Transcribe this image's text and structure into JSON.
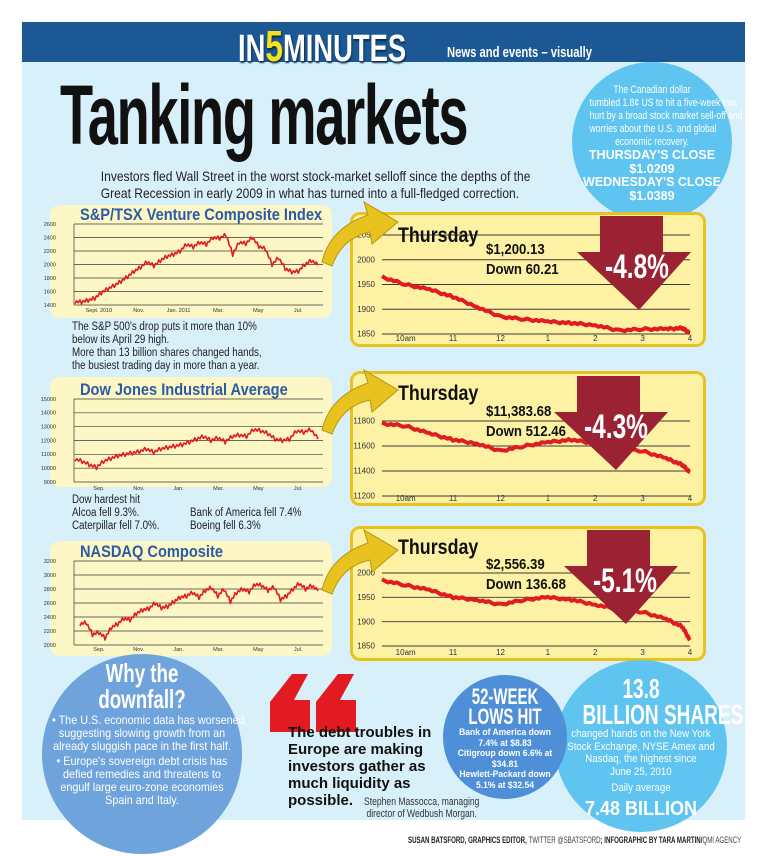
{
  "header": {
    "brand_in": "IN",
    "brand_5": "5",
    "brand_minutes": "MINUTES",
    "tagline": "News and events – visually"
  },
  "title": "Tanking markets",
  "subtitle": [
    "Investors fled Wall Street in the worst stock-market selloff since the depths of the",
    "Great Recession in early 2009 in what has turned into a full-fledged correction."
  ],
  "cad_bubble": {
    "text": [
      "The Canadian dollar",
      "tumbled 1.8¢ US to hit a five-week low,",
      "hurt by a broad stock market sell-off and",
      "worries about the U.S. and global",
      "economic recovery."
    ],
    "thu_label": "THURSDAY'S CLOSE",
    "thu_value": "$1.0209",
    "wed_label": "WEDNESDAY'S CLOSE",
    "wed_value": "$1.0389"
  },
  "notes": {
    "sp": [
      "The S&P 500's drop puts it more than 10%",
      "below its April 29 high.",
      "More than 13 billion shares changed hands,",
      "the busiest trading day in more than a year."
    ],
    "dow_head": "Dow hardest hit",
    "dow_left": [
      "Alcoa fell 9.3%.",
      "Caterpillar fell 7.0%."
    ],
    "dow_right": [
      "Bank of America fell 7.4%",
      "Boeing fell 6.3%"
    ]
  },
  "intraday_labels": [
    {
      "day": "Thursday",
      "close": "$1,200.13",
      "change": "Down 60.21",
      "pct": "-4.8%"
    },
    {
      "day": "Thursday",
      "close": "$11,383.68",
      "change": "Down 512.46",
      "pct": "-4.3%"
    },
    {
      "day": "Thursday",
      "close": "$2,556.39",
      "change": "Down 136.68",
      "pct": "-5.1%"
    }
  ],
  "why": {
    "title1": "Why the",
    "title2": "downfall?",
    "bullets": [
      [
        "• The U.S. economic data has worsened,",
        "suggesting slowing growth from an",
        "already sluggish pace in the first half."
      ],
      [
        "• Europe's sovereign debt crisis has",
        "defied remedies and threatens to",
        "engulf large euro-zone economies",
        "Spain and Italy."
      ]
    ]
  },
  "quote": {
    "mark": "“",
    "text": [
      "The debt troubles in",
      "Europe are making",
      "investors gather as",
      "much liquidity as",
      "possible."
    ],
    "attribution": [
      "Stephen Massocca, managing",
      "director of Wedbush Morgan."
    ]
  },
  "lows": {
    "title1": "52-WEEK",
    "title2": "LOWS HIT",
    "lines": [
      "Bank of America down",
      "7.4% at $8.83",
      "Citigroup down 6.6% at",
      "$34.81",
      "Hewlett-Packard down",
      "5.1% at $32.54"
    ]
  },
  "shares": {
    "num": "13.8",
    "label": "BILLION SHARES",
    "lines": [
      "changed hands on the New York",
      "Stock Exchange, NYSE Amex and",
      "Nasdaq, the highest since",
      "June 25, 2010"
    ],
    "avg_label": "Daily average",
    "avg_value": "7.48 BILLION"
  },
  "credit": {
    "a": "SUSAN BATSFORD, GRAPHICS EDITOR, ",
    "b": "TWITTER @SBATSFORD",
    "c": "; INFOGRAPHIC BY TARA MARTIN/",
    "d": "QMI AGENCY"
  },
  "colors": {
    "line": "#e01b22",
    "header": "#1b5894",
    "chart_title": "#2b5ba6",
    "down_arrow": "#9b2232",
    "panel": "#d8f0fa"
  },
  "chart_data": [
    {
      "type": "line",
      "title": "S&P/TSX Venture Composite Index",
      "ylim": [
        1400,
        2600
      ],
      "yticks": [
        2600,
        2400,
        2200,
        2000,
        1800,
        1600,
        1400
      ],
      "xticks": [
        "Sept. 2010",
        "Nov.",
        "Jan. 2011",
        "Mar.",
        "May",
        "Jul."
      ],
      "grid": true,
      "values": [
        1450,
        1445,
        1470,
        1500,
        1580,
        1640,
        1690,
        1750,
        1820,
        1900,
        1960,
        2040,
        1980,
        2060,
        2120,
        2150,
        2200,
        2300,
        2260,
        2330,
        2300,
        2400,
        2390,
        2440,
        2150,
        2330,
        2310,
        2400,
        2270,
        2230,
        2000,
        2100,
        1940,
        1890,
        1900,
        2000,
        2060,
        1990
      ]
    },
    {
      "type": "line",
      "title": "Dow Jones Industrial Average",
      "ylim": [
        9000,
        15000
      ],
      "yticks": [
        15000,
        14000,
        13000,
        12000,
        11000,
        10000,
        9000
      ],
      "xticks": [
        "Sep.",
        "Nov.",
        "Jan.",
        "Mar.",
        "May",
        "Jul."
      ],
      "grid": true,
      "values": [
        10650,
        10500,
        10250,
        10050,
        10500,
        10700,
        10900,
        11000,
        11100,
        11200,
        11400,
        11150,
        11400,
        11500,
        11600,
        11700,
        11900,
        12100,
        12300,
        12000,
        12200,
        11900,
        12300,
        12400,
        12300,
        12800,
        12700,
        12500,
        12100,
        12000,
        12100,
        12700,
        12600,
        12800,
        12100
      ]
    },
    {
      "type": "line",
      "title": "NASDAQ Composite",
      "ylim": [
        2000,
        3200
      ],
      "yticks": [
        3200,
        3000,
        2800,
        2600,
        2400,
        2200,
        2000
      ],
      "xticks": [
        "Sep.",
        "Nov.",
        "Jan.",
        "Mar.",
        "May",
        "Jul."
      ],
      "grid": true,
      "values": [
        2300,
        2320,
        2150,
        2180,
        2100,
        2250,
        2300,
        2380,
        2360,
        2450,
        2500,
        2520,
        2600,
        2530,
        2550,
        2620,
        2680,
        2700,
        2750,
        2680,
        2780,
        2820,
        2700,
        2800,
        2620,
        2750,
        2800,
        2760,
        2870,
        2850,
        2780,
        2830,
        2650,
        2700,
        2800,
        2880,
        2800,
        2850,
        2770
      ]
    },
    {
      "type": "line",
      "title": "Thursday",
      "ylim": [
        1850,
        2050
      ],
      "yticks": [
        2050,
        2000,
        1950,
        1900,
        1850
      ],
      "xticks": [
        "10am",
        "11",
        "12",
        "1",
        "2",
        "3",
        "4"
      ],
      "grid": true,
      "x": [
        "9:30",
        "10:00",
        "10:30",
        "11:00",
        "11:30",
        "12:00",
        "12:30",
        "13:00",
        "13:30",
        "14:00",
        "14:30",
        "15:00",
        "15:30",
        "15:50",
        "16:00"
      ],
      "values": [
        1965,
        1950,
        1940,
        1925,
        1905,
        1885,
        1880,
        1875,
        1872,
        1868,
        1857,
        1860,
        1860,
        1862,
        1852
      ]
    },
    {
      "type": "line",
      "title": "Thursday",
      "ylim": [
        11200,
        11800
      ],
      "yticks": [
        11800,
        11600,
        11400,
        11200
      ],
      "xticks": [
        "10am",
        "11",
        "12",
        "1",
        "2",
        "3",
        "4"
      ],
      "grid": true,
      "x": [
        "9:30",
        "10:00",
        "10:30",
        "11:00",
        "11:30",
        "12:00",
        "12:30",
        "13:00",
        "13:30",
        "14:00",
        "14:30",
        "15:00",
        "15:30",
        "15:50",
        "16:00"
      ],
      "values": [
        11780,
        11760,
        11700,
        11650,
        11620,
        11560,
        11600,
        11630,
        11650,
        11620,
        11580,
        11560,
        11500,
        11450,
        11390
      ]
    },
    {
      "type": "line",
      "title": "Thursday",
      "ylim": [
        1850,
        2000
      ],
      "yticks": [
        2000,
        1950,
        1900,
        1850
      ],
      "xticks": [
        "10am",
        "11",
        "12",
        "1",
        "2",
        "3",
        "4"
      ],
      "grid": true,
      "x": [
        "9:30",
        "10:00",
        "10:30",
        "11:00",
        "11:30",
        "12:00",
        "12:30",
        "13:00",
        "13:30",
        "14:00",
        "14:30",
        "15:00",
        "15:30",
        "15:50",
        "16:00"
      ],
      "values": [
        1985,
        1975,
        1965,
        1950,
        1945,
        1935,
        1945,
        1950,
        1945,
        1935,
        1925,
        1920,
        1905,
        1890,
        1862
      ]
    }
  ]
}
